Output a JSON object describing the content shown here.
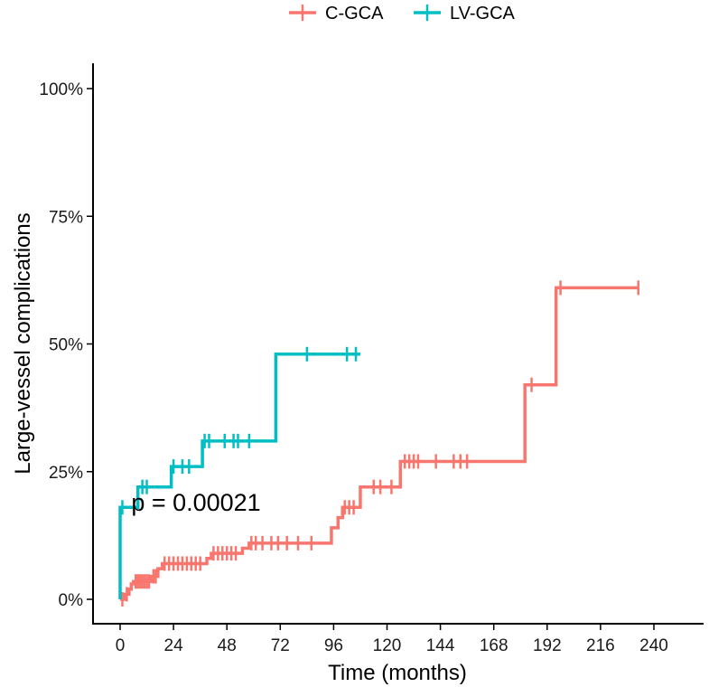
{
  "chart_data": {
    "type": "line",
    "subtype": "kaplan-meier cumulative incidence (step)",
    "xlabel": "Time (months)",
    "ylabel": "Large-vessel complications",
    "xlim": [
      -4,
      258
    ],
    "ylim": [
      -0.035,
      1.05
    ],
    "x_ticks": [
      0,
      24,
      48,
      72,
      96,
      120,
      144,
      168,
      192,
      216,
      240
    ],
    "y_ticks": [
      0,
      0.25,
      0.5,
      0.75,
      1.0
    ],
    "y_tick_labels": [
      "0%",
      "25%",
      "50%",
      "75%",
      "100%"
    ],
    "legend_position": "top",
    "annotation": {
      "text": "p = 0.00021",
      "x": 5,
      "y": 0.195
    },
    "series": [
      {
        "name": "C-GCA",
        "color": "#F8766D",
        "steps": [
          [
            0,
            0
          ],
          [
            2,
            0.01
          ],
          [
            4,
            0.02
          ],
          [
            5,
            0.03
          ],
          [
            6,
            0.035
          ],
          [
            14,
            0.045
          ],
          [
            17,
            0.06
          ],
          [
            19,
            0.07
          ],
          [
            39,
            0.08
          ],
          [
            41,
            0.09
          ],
          [
            55,
            0.1
          ],
          [
            58,
            0.11
          ],
          [
            95,
            0.14
          ],
          [
            98,
            0.16
          ],
          [
            100,
            0.18
          ],
          [
            108,
            0.22
          ],
          [
            126,
            0.27
          ],
          [
            182,
            0.42
          ],
          [
            196,
            0.61
          ],
          [
            233,
            0.61
          ]
        ],
        "censor": [
          [
            1,
            0
          ],
          [
            3,
            0.01
          ],
          [
            7,
            0.035
          ],
          [
            8,
            0.035
          ],
          [
            9,
            0.035
          ],
          [
            10,
            0.035
          ],
          [
            11,
            0.035
          ],
          [
            12,
            0.035
          ],
          [
            13,
            0.035
          ],
          [
            15,
            0.045
          ],
          [
            16,
            0.045
          ],
          [
            20,
            0.07
          ],
          [
            22,
            0.07
          ],
          [
            24,
            0.07
          ],
          [
            26,
            0.07
          ],
          [
            28,
            0.07
          ],
          [
            30,
            0.07
          ],
          [
            32,
            0.07
          ],
          [
            34,
            0.07
          ],
          [
            36,
            0.07
          ],
          [
            42,
            0.09
          ],
          [
            44,
            0.09
          ],
          [
            46,
            0.09
          ],
          [
            48,
            0.09
          ],
          [
            50,
            0.09
          ],
          [
            52,
            0.09
          ],
          [
            59,
            0.11
          ],
          [
            61,
            0.11
          ],
          [
            64,
            0.11
          ],
          [
            68,
            0.11
          ],
          [
            71,
            0.11
          ],
          [
            75,
            0.11
          ],
          [
            80,
            0.11
          ],
          [
            86,
            0.11
          ],
          [
            101,
            0.18
          ],
          [
            103,
            0.18
          ],
          [
            105,
            0.18
          ],
          [
            114,
            0.22
          ],
          [
            117,
            0.22
          ],
          [
            122,
            0.22
          ],
          [
            128,
            0.27
          ],
          [
            130,
            0.27
          ],
          [
            132,
            0.27
          ],
          [
            134,
            0.27
          ],
          [
            142,
            0.27
          ],
          [
            150,
            0.27
          ],
          [
            153,
            0.27
          ],
          [
            156,
            0.27
          ],
          [
            185,
            0.42
          ],
          [
            198,
            0.61
          ],
          [
            233,
            0.61
          ]
        ]
      },
      {
        "name": "LV-GCA",
        "color": "#00BFC4",
        "steps": [
          [
            0,
            0
          ],
          [
            0,
            0.18
          ],
          [
            8,
            0.22
          ],
          [
            23,
            0.26
          ],
          [
            37,
            0.31
          ],
          [
            70,
            0.48
          ],
          [
            108,
            0.48
          ]
        ],
        "censor": [
          [
            1,
            0.18
          ],
          [
            10,
            0.22
          ],
          [
            12,
            0.22
          ],
          [
            24,
            0.26
          ],
          [
            28,
            0.26
          ],
          [
            31,
            0.26
          ],
          [
            38,
            0.31
          ],
          [
            40,
            0.31
          ],
          [
            47,
            0.31
          ],
          [
            51,
            0.31
          ],
          [
            53,
            0.31
          ],
          [
            58,
            0.31
          ],
          [
            84,
            0.48
          ],
          [
            102,
            0.48
          ],
          [
            106,
            0.48
          ]
        ]
      }
    ]
  }
}
